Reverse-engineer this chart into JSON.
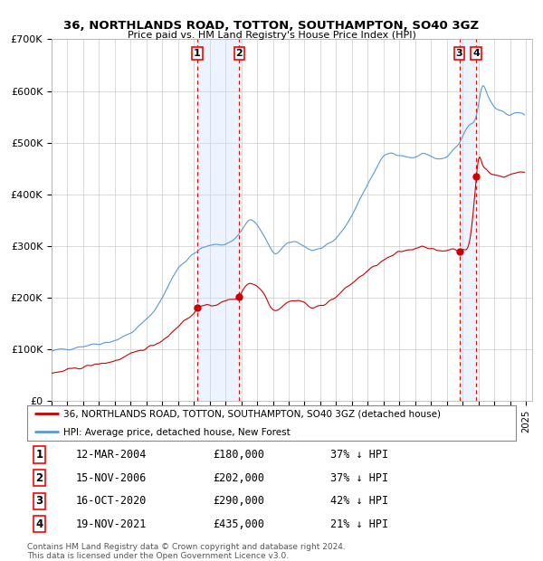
{
  "title_line1": "36, NORTHLANDS ROAD, TOTTON, SOUTHAMPTON, SO40 3GZ",
  "title_line2": "Price paid vs. HM Land Registry's House Price Index (HPI)",
  "ylim": [
    0,
    700000
  ],
  "yticks": [
    0,
    100000,
    200000,
    300000,
    400000,
    500000,
    600000,
    700000
  ],
  "ytick_labels": [
    "£0",
    "£100K",
    "£200K",
    "£300K",
    "£400K",
    "£500K",
    "£600K",
    "£700K"
  ],
  "hpi_color": "#5599dd",
  "price_color": "#cc0000",
  "dot_color": "#cc0000",
  "sale_year_floats": [
    2004.208,
    2006.875,
    2020.792,
    2021.875
  ],
  "sale_prices": [
    180000,
    202000,
    290000,
    435000
  ],
  "sale_labels": [
    "1",
    "2",
    "3",
    "4"
  ],
  "transaction_info": [
    {
      "num": "1",
      "date": "12-MAR-2004",
      "price": "£180,000",
      "hpi": "37% ↓ HPI"
    },
    {
      "num": "2",
      "date": "15-NOV-2006",
      "price": "£202,000",
      "hpi": "37% ↓ HPI"
    },
    {
      "num": "3",
      "date": "16-OCT-2020",
      "price": "£290,000",
      "hpi": "42% ↓ HPI"
    },
    {
      "num": "4",
      "date": "19-NOV-2021",
      "price": "£435,000",
      "hpi": "21% ↓ HPI"
    }
  ],
  "legend_line1": "36, NORTHLANDS ROAD, TOTTON, SOUTHAMPTON, SO40 3GZ (detached house)",
  "legend_line2": "HPI: Average price, detached house, New Forest",
  "footnote_line1": "Contains HM Land Registry data © Crown copyright and database right 2024.",
  "footnote_line2": "This data is licensed under the Open Government Licence v3.0.",
  "bg_color": "#ffffff",
  "grid_color": "#cccccc",
  "shade_color": "#cce0ff",
  "hpi_keypoints": [
    [
      1995.0,
      95000
    ],
    [
      1996.0,
      102000
    ],
    [
      1997.0,
      107000
    ],
    [
      1998.0,
      112000
    ],
    [
      1999.0,
      118000
    ],
    [
      2000.0,
      132000
    ],
    [
      2001.0,
      158000
    ],
    [
      2002.0,
      200000
    ],
    [
      2002.5,
      230000
    ],
    [
      2003.0,
      258000
    ],
    [
      2003.5,
      272000
    ],
    [
      2004.0,
      285000
    ],
    [
      2004.5,
      295000
    ],
    [
      2005.0,
      300000
    ],
    [
      2005.5,
      303000
    ],
    [
      2006.0,
      305000
    ],
    [
      2006.5,
      312000
    ],
    [
      2007.0,
      330000
    ],
    [
      2007.5,
      350000
    ],
    [
      2008.0,
      340000
    ],
    [
      2008.5,
      315000
    ],
    [
      2009.0,
      288000
    ],
    [
      2009.5,
      292000
    ],
    [
      2010.0,
      305000
    ],
    [
      2010.5,
      308000
    ],
    [
      2011.0,
      300000
    ],
    [
      2011.5,
      292000
    ],
    [
      2012.0,
      295000
    ],
    [
      2012.5,
      300000
    ],
    [
      2013.0,
      315000
    ],
    [
      2013.5,
      335000
    ],
    [
      2014.0,
      360000
    ],
    [
      2014.5,
      390000
    ],
    [
      2015.0,
      420000
    ],
    [
      2015.5,
      448000
    ],
    [
      2016.0,
      472000
    ],
    [
      2016.5,
      480000
    ],
    [
      2017.0,
      478000
    ],
    [
      2017.5,
      472000
    ],
    [
      2018.0,
      472000
    ],
    [
      2018.5,
      478000
    ],
    [
      2019.0,
      474000
    ],
    [
      2019.5,
      468000
    ],
    [
      2020.0,
      472000
    ],
    [
      2020.5,
      488000
    ],
    [
      2020.792,
      498000
    ],
    [
      2021.0,
      510000
    ],
    [
      2021.5,
      535000
    ],
    [
      2021.875,
      552000
    ],
    [
      2022.0,
      572000
    ],
    [
      2022.25,
      608000
    ],
    [
      2022.5,
      598000
    ],
    [
      2022.75,
      582000
    ],
    [
      2023.0,
      570000
    ],
    [
      2023.5,
      562000
    ],
    [
      2024.0,
      555000
    ],
    [
      2024.5,
      558000
    ],
    [
      2024.917,
      555000
    ]
  ],
  "price_keypoints": [
    [
      1995.0,
      52000
    ],
    [
      1996.0,
      60000
    ],
    [
      1997.0,
      66000
    ],
    [
      1998.0,
      72000
    ],
    [
      1999.0,
      78000
    ],
    [
      2000.0,
      90000
    ],
    [
      2001.0,
      103000
    ],
    [
      2002.0,
      118000
    ],
    [
      2002.5,
      130000
    ],
    [
      2003.0,
      145000
    ],
    [
      2003.5,
      158000
    ],
    [
      2004.0,
      170000
    ],
    [
      2004.208,
      180000
    ],
    [
      2004.5,
      183000
    ],
    [
      2005.0,
      185000
    ],
    [
      2005.5,
      188000
    ],
    [
      2006.0,
      193000
    ],
    [
      2006.5,
      198000
    ],
    [
      2006.875,
      202000
    ],
    [
      2007.0,
      210000
    ],
    [
      2007.5,
      228000
    ],
    [
      2008.0,
      222000
    ],
    [
      2008.5,
      205000
    ],
    [
      2009.0,
      178000
    ],
    [
      2009.5,
      182000
    ],
    [
      2010.0,
      192000
    ],
    [
      2010.5,
      195000
    ],
    [
      2011.0,
      190000
    ],
    [
      2011.5,
      180000
    ],
    [
      2012.0,
      185000
    ],
    [
      2012.5,
      192000
    ],
    [
      2013.0,
      202000
    ],
    [
      2013.5,
      215000
    ],
    [
      2014.0,
      228000
    ],
    [
      2014.5,
      240000
    ],
    [
      2015.0,
      252000
    ],
    [
      2015.5,
      262000
    ],
    [
      2016.0,
      272000
    ],
    [
      2016.5,
      280000
    ],
    [
      2017.0,
      288000
    ],
    [
      2017.5,
      292000
    ],
    [
      2018.0,
      296000
    ],
    [
      2018.5,
      300000
    ],
    [
      2019.0,
      295000
    ],
    [
      2019.5,
      290000
    ],
    [
      2020.0,
      292000
    ],
    [
      2020.5,
      294000
    ],
    [
      2020.792,
      290000
    ],
    [
      2021.0,
      295000
    ],
    [
      2021.5,
      318000
    ],
    [
      2021.875,
      435000
    ],
    [
      2022.0,
      468000
    ],
    [
      2022.25,
      458000
    ],
    [
      2022.5,
      448000
    ],
    [
      2022.75,
      440000
    ],
    [
      2023.0,
      438000
    ],
    [
      2023.5,
      435000
    ],
    [
      2024.0,
      438000
    ],
    [
      2024.5,
      442000
    ],
    [
      2024.917,
      443000
    ]
  ]
}
